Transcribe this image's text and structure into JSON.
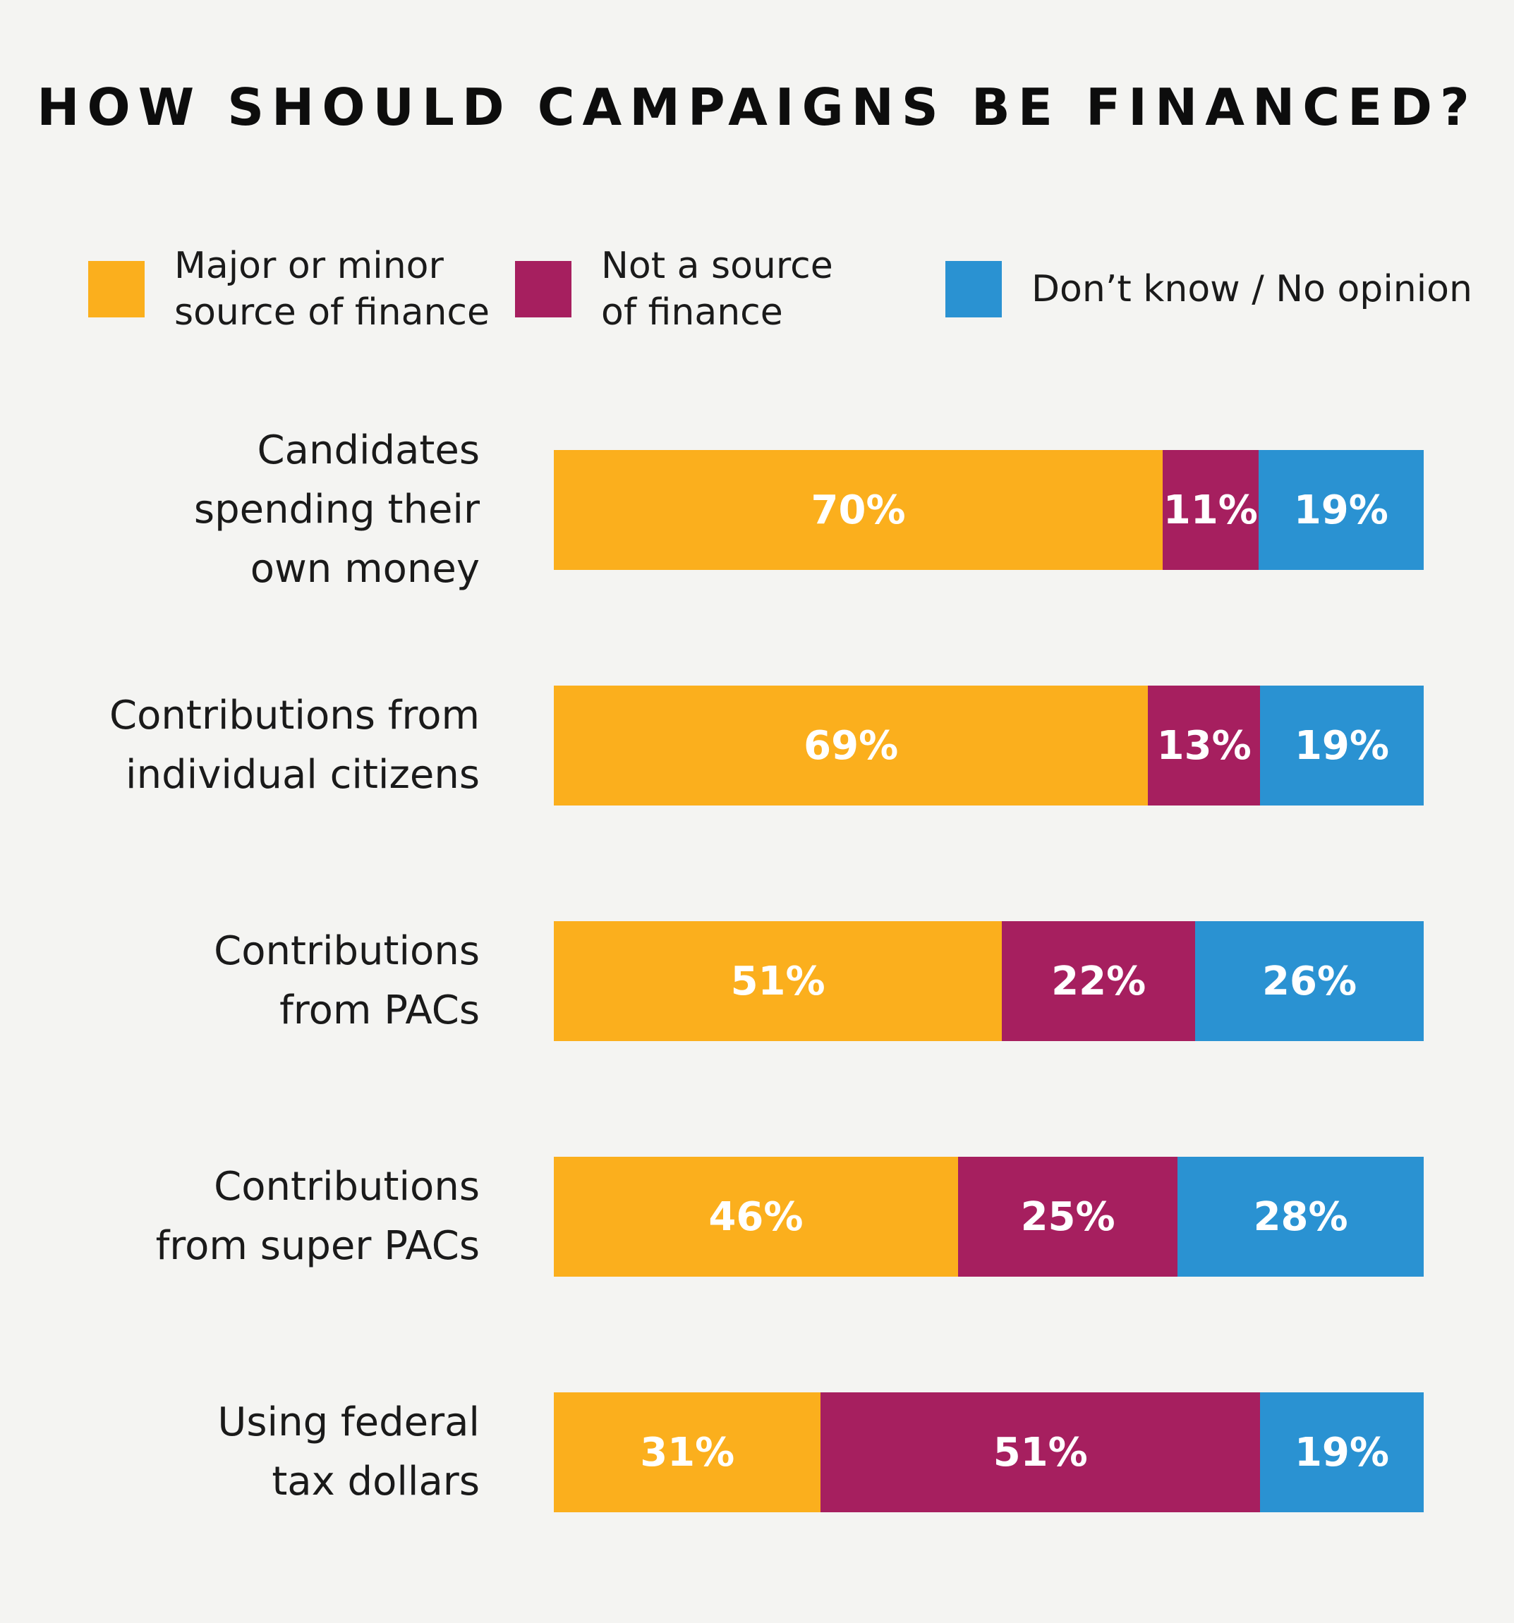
{
  "title": "HOW SHOULD CAMPAIGNS BE FINANCED?",
  "colors": {
    "major_minor": "#fbaf1d",
    "not_source": "#a61f5f",
    "dont_know": "#2a92d2",
    "background": "#f4f4f2"
  },
  "legend": [
    {
      "label": "Major or minor\nsource of finance",
      "color": "#fbaf1d"
    },
    {
      "label": "Not a source\nof finance",
      "color": "#a61f5f"
    },
    {
      "label": "Don’t know / No opinion",
      "color": "#2a92d2"
    }
  ],
  "chart_data": {
    "type": "bar",
    "orientation": "horizontal",
    "stacked": true,
    "title": "HOW SHOULD CAMPAIGNS BE FINANCED?",
    "categories": [
      "Candidates\nspending their\nown money",
      "Contributions from\nindividual citizens",
      "Contributions\nfrom PACs",
      "Contributions\nfrom super PACs",
      "Using federal\ntax dollars"
    ],
    "series": [
      {
        "name": "Major or minor source of finance",
        "color": "#fbaf1d",
        "values": [
          70,
          69,
          51,
          46,
          31
        ],
        "labels": [
          "70%",
          "69%",
          "51%",
          "46%",
          "31%"
        ]
      },
      {
        "name": "Not a source of finance",
        "color": "#a61f5f",
        "values": [
          11,
          13,
          22,
          25,
          51
        ],
        "labels": [
          "11%",
          "13%",
          "22%",
          "25%",
          "51%"
        ]
      },
      {
        "name": "Don’t know / No opinion",
        "color": "#2a92d2",
        "values": [
          19,
          19,
          26,
          28,
          19
        ],
        "labels": [
          "19%",
          "19%",
          "26%",
          "28%",
          "19%"
        ]
      }
    ],
    "legend_position": "top",
    "grid": false,
    "xlim": [
      0,
      100
    ]
  }
}
